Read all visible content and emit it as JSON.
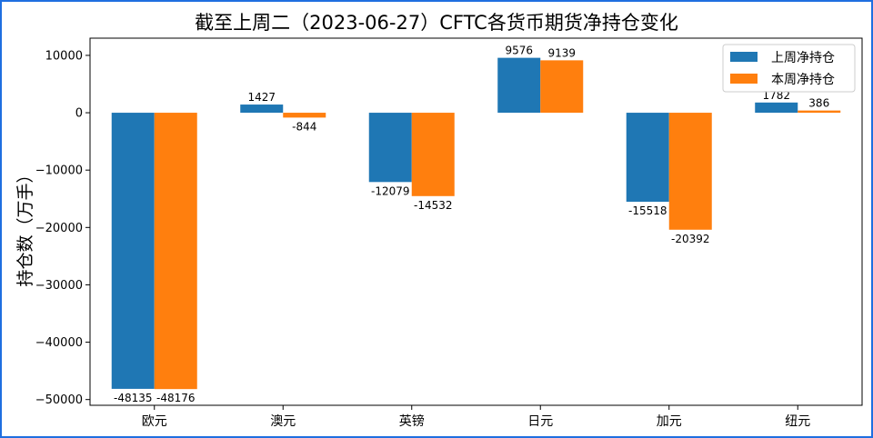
{
  "chart_data": {
    "type": "bar",
    "title": "截至上周二（2023-06-27）CFTC各货币期货净持仓变化",
    "xlabel": "",
    "ylabel": "持仓数（万手）",
    "categories": [
      "欧元",
      "澳元",
      "英镑",
      "日元",
      "加元",
      "纽元"
    ],
    "series": [
      {
        "name": "上周净持仓",
        "color": "#1f77b4",
        "values": [
          -48135,
          1427,
          -12079,
          9576,
          -15518,
          1782
        ]
      },
      {
        "name": "本周净持仓",
        "color": "#ff7f0e",
        "values": [
          -48176,
          -844,
          -14532,
          9139,
          -20392,
          386
        ]
      }
    ],
    "data_labels": [
      [
        "-48135",
        "1427",
        "-12079",
        "9576",
        "-15518",
        "1782"
      ],
      [
        "-48176",
        "-844",
        "-14532",
        "9139",
        "-20392",
        "386"
      ]
    ],
    "ylim": [
      -51000,
      13000
    ],
    "yticks": [
      10000,
      0,
      -10000,
      -20000,
      -30000,
      -40000,
      -50000
    ],
    "ytick_labels": [
      "10000",
      "0",
      "−10000",
      "−20000",
      "−30000",
      "−40000",
      "−50000"
    ],
    "grid": false,
    "legend_position": "top-right"
  }
}
